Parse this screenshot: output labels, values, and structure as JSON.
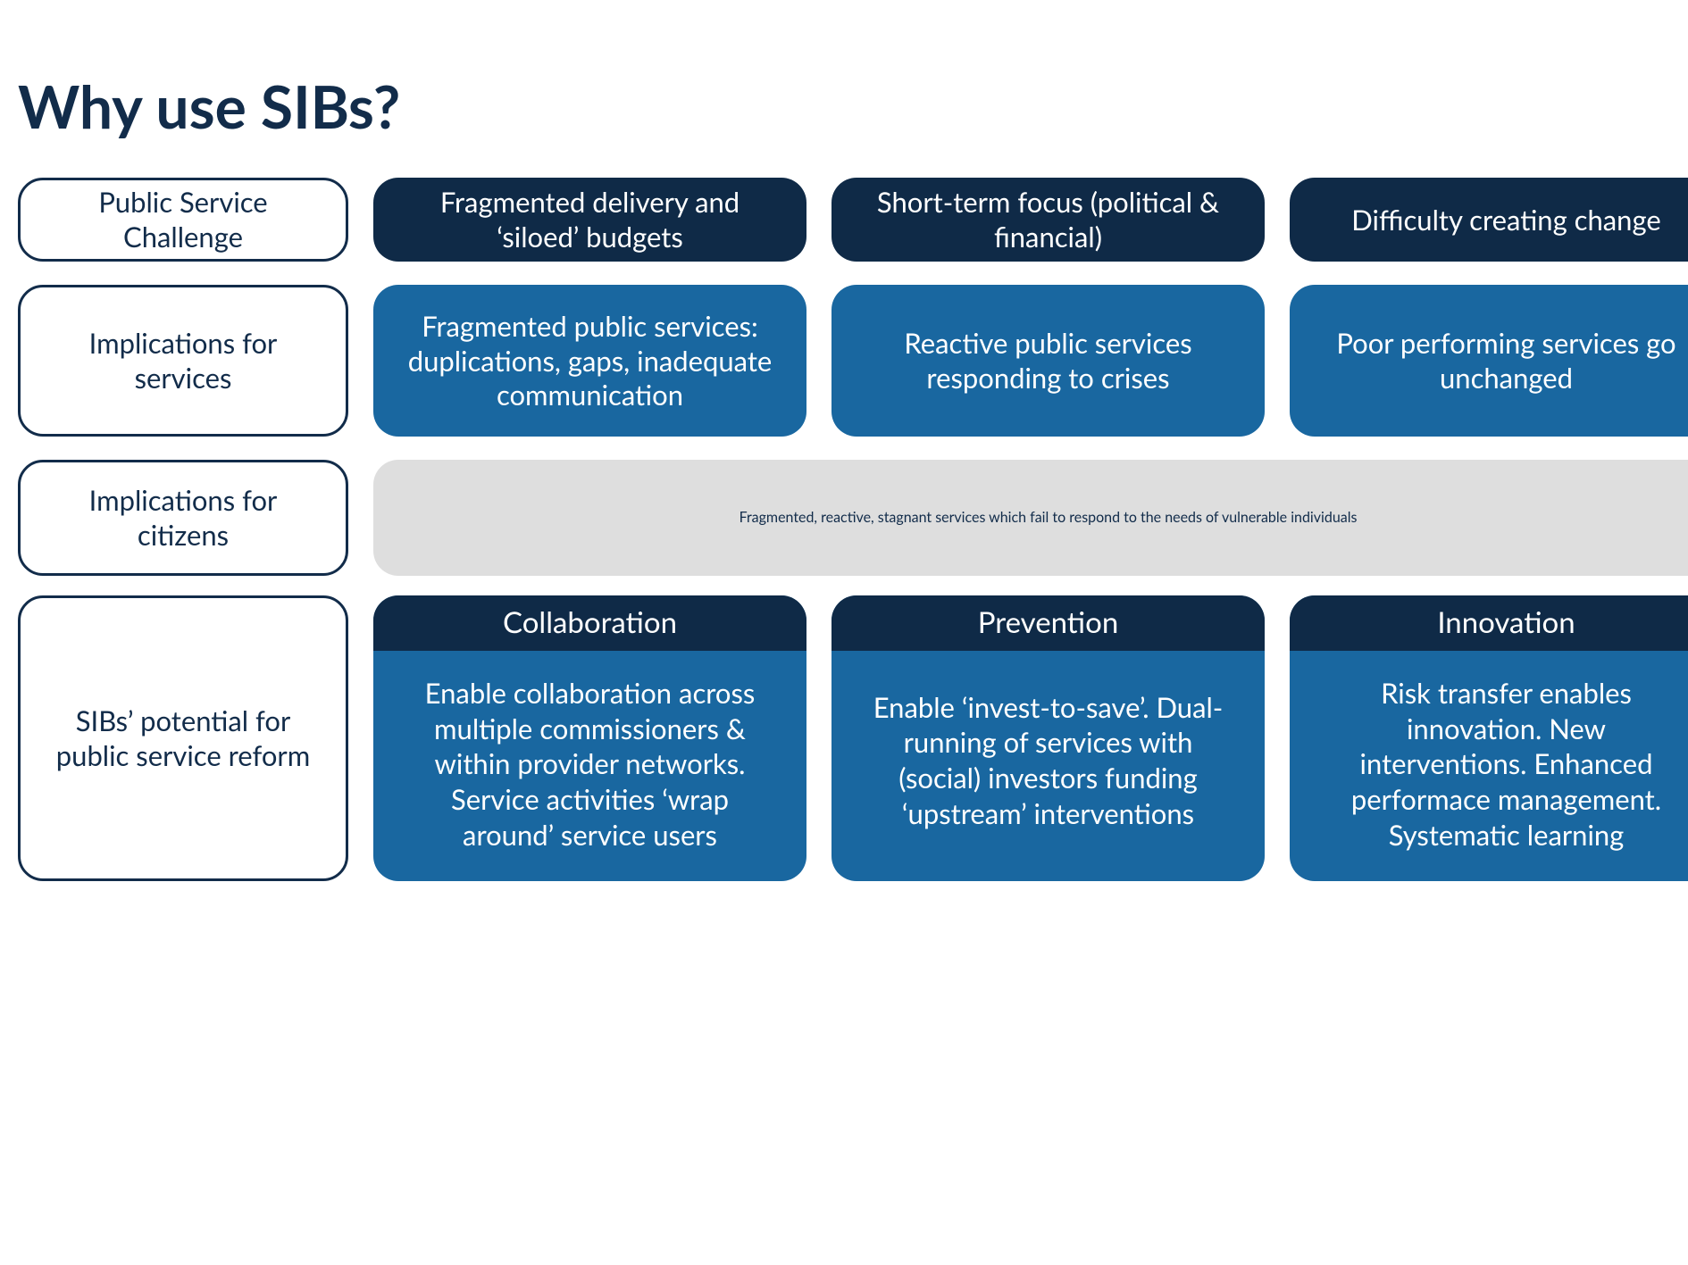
{
  "colors": {
    "title": "#122c4a",
    "navy_bg": "#0f2a47",
    "navy_text": "#ffffff",
    "blue_bg": "#1967a0",
    "blue_text": "#ffffff",
    "grey_bg": "#dedede",
    "grey_text": "#122c4a",
    "label_border": "#122c4a",
    "label_text": "#122c4a",
    "label_bg": "#ffffff"
  },
  "layout": {
    "row1_height": 94,
    "row2_height": 170,
    "row3_height": 130,
    "row4_height": 320,
    "border_radius": 28,
    "font_size_title": 66,
    "font_size_cell": 31,
    "font_size_header": 33
  },
  "title": "Why use SIBs?",
  "rows": {
    "challenge": {
      "label": "Public Service Challenge",
      "cells": [
        "Fragmented delivery and ‘siloed’ budgets",
        "Short-term focus (political & financial)",
        "Difficulty creating change"
      ]
    },
    "services": {
      "label": "Implications for services",
      "cells": [
        "Fragmented public services: duplications, gaps, inadequate communication",
        "Reactive public services responding to crises",
        "Poor performing services go unchanged"
      ]
    },
    "citizens": {
      "label": "Implications for citizens",
      "merged": "Fragmented, reactive, stagnant services which fail to respond to the needs of vulnerable individuals"
    },
    "potential": {
      "label": "SIBs’ potential for public service reform",
      "cards": [
        {
          "header": "Collaboration",
          "body": "Enable collaboration across multiple commissioners & within provider networks. Service activities ‘wrap around’ service users"
        },
        {
          "header": "Prevention",
          "body": "Enable ‘invest-to-save’. Dual-running of services with (social) investors funding ‘upstream’ interventions"
        },
        {
          "header": "Innovation",
          "body": "Risk transfer enables innovation. New interventions. Enhanced performace management. Systematic learning"
        }
      ]
    }
  }
}
